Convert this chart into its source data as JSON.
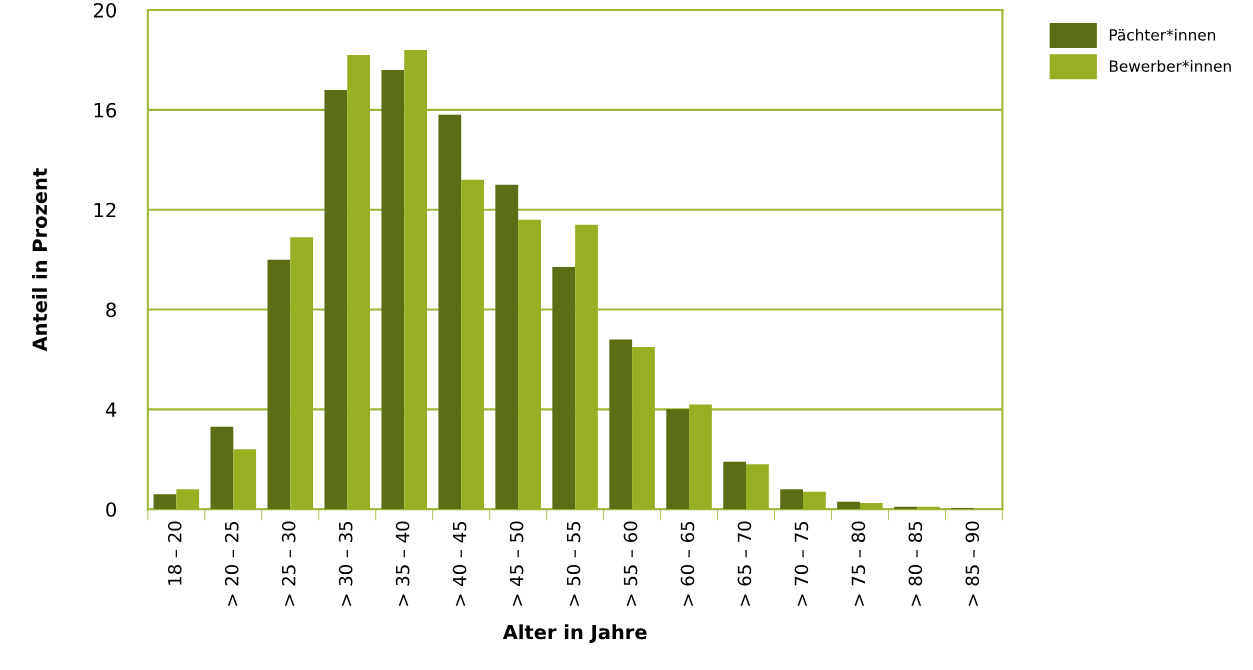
{
  "chart_data": {
    "type": "bar",
    "xlabel": "Alter in Jahre",
    "ylabel": "Anteil in Prozent",
    "categories": [
      "18 – 20",
      "> 20 – 25",
      "> 25 – 30",
      "> 30 – 35",
      "> 35 – 40",
      "> 40 – 45",
      "> 45 – 50",
      "> 50 – 55",
      "> 55 – 60",
      "> 60 – 65",
      "> 65 – 70",
      "> 70 – 75",
      "> 75 – 80",
      "> 80 – 85",
      "> 85 – 90"
    ],
    "series": [
      {
        "name": "Pächter*innen",
        "color": "#5b6e15",
        "values": [
          0.6,
          3.3,
          10.0,
          16.8,
          17.6,
          15.8,
          13.0,
          9.7,
          6.8,
          4.0,
          1.9,
          0.8,
          0.3,
          0.1,
          0.05
        ]
      },
      {
        "name": "Bewerber*innen",
        "color": "#97b023",
        "values": [
          0.8,
          2.4,
          10.9,
          18.2,
          18.4,
          13.2,
          11.6,
          11.4,
          6.5,
          4.2,
          1.8,
          0.7,
          0.25,
          0.1,
          null
        ]
      }
    ],
    "ylim": [
      0,
      20
    ],
    "yticks": [
      0,
      4,
      8,
      12,
      16,
      20
    ],
    "grid": "y",
    "legend": "top right"
  }
}
